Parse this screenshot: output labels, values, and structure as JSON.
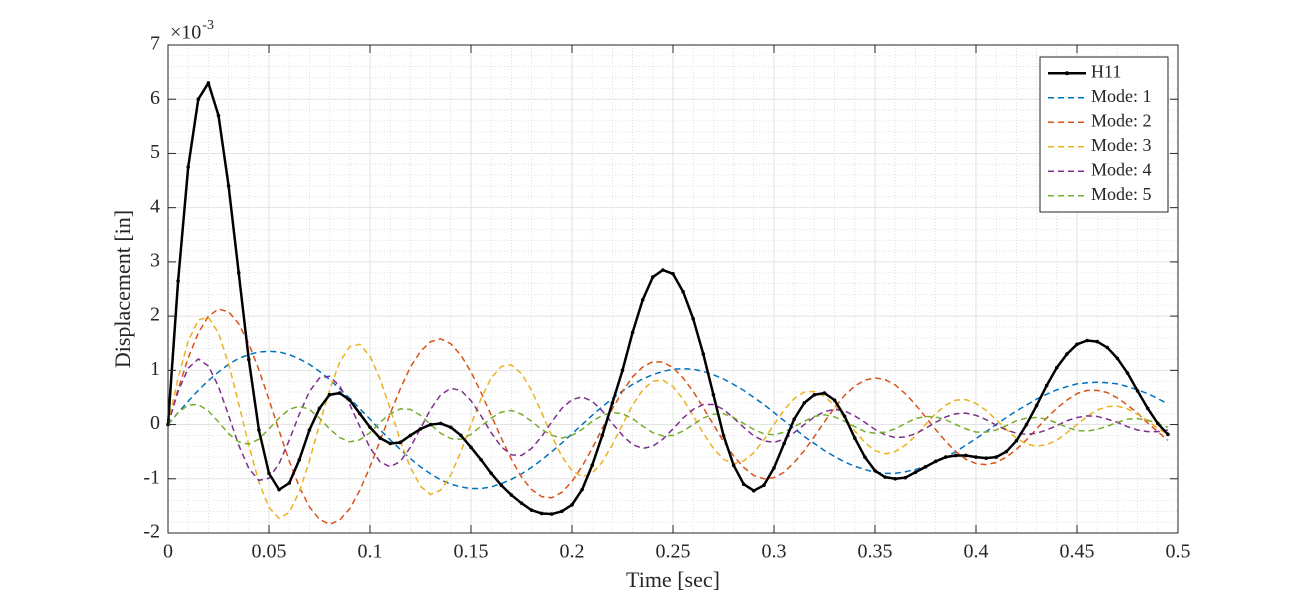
{
  "chart_data": {
    "type": "line",
    "xlabel": "Time [sec]",
    "ylabel": "Displacement [in]",
    "y_multiplier": {
      "base": "×10",
      "exponent": "-3"
    },
    "xlim": [
      0,
      0.5
    ],
    "xticks": [
      0,
      0.05,
      0.1,
      0.15,
      0.2,
      0.25,
      0.3,
      0.35,
      0.4,
      0.45,
      0.5
    ],
    "ylim": [
      -2,
      7
    ],
    "yticks": [
      -2,
      -1,
      0,
      1,
      2,
      3,
      4,
      5,
      6,
      7
    ],
    "grid": true,
    "minor_grid": true,
    "legend": "upper right",
    "x": [
      0,
      0.005,
      0.01,
      0.015,
      0.02,
      0.025,
      0.03,
      0.035,
      0.04,
      0.045,
      0.05,
      0.055,
      0.06,
      0.065,
      0.07,
      0.075,
      0.08,
      0.085,
      0.09,
      0.095,
      0.1,
      0.105,
      0.11,
      0.115,
      0.12,
      0.125,
      0.13,
      0.135,
      0.14,
      0.145,
      0.15,
      0.155,
      0.16,
      0.165,
      0.17,
      0.175,
      0.18,
      0.185,
      0.19,
      0.195,
      0.2,
      0.205,
      0.21,
      0.215,
      0.22,
      0.225,
      0.23,
      0.235,
      0.24,
      0.245,
      0.25,
      0.255,
      0.26,
      0.265,
      0.27,
      0.275,
      0.28,
      0.285,
      0.29,
      0.295,
      0.3,
      0.305,
      0.31,
      0.315,
      0.32,
      0.325,
      0.33,
      0.335,
      0.34,
      0.345,
      0.35,
      0.355,
      0.36,
      0.365,
      0.37,
      0.375,
      0.38,
      0.385,
      0.39,
      0.395,
      0.4,
      0.405,
      0.41,
      0.415,
      0.42,
      0.425,
      0.43,
      0.435,
      0.44,
      0.445,
      0.45,
      0.455,
      0.46,
      0.465,
      0.47,
      0.475,
      0.48,
      0.485,
      0.49,
      0.495
    ],
    "series": [
      {
        "name": "H11",
        "color": "#000000",
        "line_style": "solid",
        "marker": true,
        "values": [
          0,
          2.65,
          4.75,
          6.0,
          6.3,
          5.7,
          4.4,
          2.8,
          1.2,
          -0.1,
          -0.9,
          -1.2,
          -1.08,
          -0.65,
          -0.1,
          0.3,
          0.55,
          0.58,
          0.45,
          0.2,
          -0.05,
          -0.25,
          -0.35,
          -0.33,
          -0.2,
          -0.08,
          0.0,
          0.02,
          -0.05,
          -0.2,
          -0.42,
          -0.65,
          -0.9,
          -1.12,
          -1.3,
          -1.45,
          -1.58,
          -1.64,
          -1.65,
          -1.6,
          -1.48,
          -1.2,
          -0.75,
          -0.2,
          0.4,
          1.0,
          1.7,
          2.3,
          2.72,
          2.85,
          2.78,
          2.45,
          1.95,
          1.3,
          0.55,
          -0.2,
          -0.75,
          -1.1,
          -1.22,
          -1.12,
          -0.8,
          -0.35,
          0.1,
          0.4,
          0.55,
          0.58,
          0.45,
          0.15,
          -0.25,
          -0.6,
          -0.85,
          -0.97,
          -1.0,
          -0.98,
          -0.88,
          -0.78,
          -0.68,
          -0.6,
          -0.57,
          -0.57,
          -0.6,
          -0.62,
          -0.6,
          -0.5,
          -0.3,
          0.0,
          0.35,
          0.72,
          1.05,
          1.3,
          1.48,
          1.55,
          1.53,
          1.42,
          1.22,
          0.95,
          0.62,
          0.3,
          0.02,
          -0.18
        ]
      },
      {
        "name": "Mode: 1",
        "color": "#0072BD",
        "line_style": "dashed",
        "marker": false,
        "values": [
          0,
          0.22,
          0.43,
          0.63,
          0.81,
          0.97,
          1.11,
          1.22,
          1.29,
          1.34,
          1.35,
          1.34,
          1.29,
          1.21,
          1.11,
          0.98,
          0.83,
          0.66,
          0.48,
          0.29,
          0.1,
          -0.1,
          -0.28,
          -0.46,
          -0.63,
          -0.78,
          -0.91,
          -1.02,
          -1.1,
          -1.15,
          -1.18,
          -1.18,
          -1.15,
          -1.09,
          -1.01,
          -0.91,
          -0.79,
          -0.65,
          -0.5,
          -0.34,
          -0.17,
          0,
          0.17,
          0.33,
          0.48,
          0.62,
          0.74,
          0.84,
          0.92,
          0.98,
          1.02,
          1.03,
          1.02,
          0.98,
          0.92,
          0.84,
          0.74,
          0.63,
          0.5,
          0.37,
          0.22,
          0.07,
          -0.07,
          -0.22,
          -0.35,
          -0.48,
          -0.59,
          -0.69,
          -0.77,
          -0.83,
          -0.88,
          -0.9,
          -0.9,
          -0.87,
          -0.83,
          -0.77,
          -0.69,
          -0.6,
          -0.5,
          -0.38,
          -0.26,
          -0.13,
          0,
          0.13,
          0.25,
          0.36,
          0.47,
          0.56,
          0.64,
          0.7,
          0.75,
          0.77,
          0.78,
          0.77,
          0.75,
          0.7,
          0.64,
          0.57,
          0.48,
          0.38
        ]
      },
      {
        "name": "Mode: 2",
        "color": "#D95319",
        "line_style": "dashed",
        "marker": false,
        "values": [
          0,
          0.65,
          1.23,
          1.69,
          2.0,
          2.13,
          2.08,
          1.86,
          1.49,
          1.01,
          0.46,
          -0.11,
          -0.67,
          -1.15,
          -1.52,
          -1.75,
          -1.84,
          -1.76,
          -1.55,
          -1.21,
          -0.78,
          -0.3,
          0.2,
          0.66,
          1.06,
          1.35,
          1.53,
          1.58,
          1.49,
          1.28,
          0.97,
          0.59,
          0.17,
          -0.25,
          -0.64,
          -0.97,
          -1.2,
          -1.33,
          -1.35,
          -1.25,
          -1.05,
          -0.77,
          -0.44,
          -0.07,
          0.29,
          0.61,
          0.88,
          1.06,
          1.16,
          1.15,
          1.05,
          0.86,
          0.61,
          0.31,
          0,
          -0.31,
          -0.58,
          -0.79,
          -0.94,
          -1.0,
          -0.98,
          -0.88,
          -0.7,
          -0.48,
          -0.22,
          0.05,
          0.31,
          0.54,
          0.71,
          0.82,
          0.86,
          0.83,
          0.73,
          0.57,
          0.37,
          0.14,
          -0.09,
          -0.31,
          -0.5,
          -0.64,
          -0.72,
          -0.74,
          -0.7,
          -0.6,
          -0.46,
          -0.28,
          -0.08,
          0.12,
          0.3,
          0.45,
          0.57,
          0.63,
          0.63,
          0.59,
          0.49,
          0.36,
          0.21,
          0.03,
          -0.13,
          -0.29
        ]
      },
      {
        "name": "Mode: 3",
        "color": "#EDB120",
        "line_style": "dashed",
        "marker": false,
        "values": [
          0,
          0.86,
          1.54,
          1.93,
          1.98,
          1.69,
          1.12,
          0.39,
          -0.38,
          -1.06,
          -1.53,
          -1.73,
          -1.62,
          -1.24,
          -0.67,
          0,
          0.64,
          1.15,
          1.44,
          1.48,
          1.26,
          0.84,
          0.29,
          -0.29,
          -0.79,
          -1.14,
          -1.29,
          -1.21,
          -0.93,
          -0.5,
          0,
          0.48,
          0.86,
          1.07,
          1.1,
          0.94,
          0.63,
          0.22,
          -0.21,
          -0.59,
          -0.85,
          -0.96,
          -0.9,
          -0.69,
          -0.37,
          0,
          0.36,
          0.64,
          0.8,
          0.82,
          0.7,
          0.47,
          0.16,
          -0.16,
          -0.44,
          -0.64,
          -0.72,
          -0.67,
          -0.52,
          -0.28,
          0,
          0.27,
          0.48,
          0.6,
          0.61,
          0.52,
          0.35,
          0.12,
          -0.12,
          -0.33,
          -0.48,
          -0.54,
          -0.5,
          -0.38,
          -0.21,
          0,
          0.2,
          0.36,
          0.45,
          0.46,
          0.39,
          0.26,
          0.09,
          -0.09,
          -0.25,
          -0.36,
          -0.4,
          -0.37,
          -0.29,
          -0.15,
          0,
          0.15,
          0.27,
          0.33,
          0.34,
          0.29,
          0.19,
          0.07,
          -0.07,
          -0.18
        ]
      },
      {
        "name": "Mode: 4",
        "color": "#7E2F8E",
        "line_style": "dashed",
        "marker": false,
        "values": [
          0,
          0.61,
          1.04,
          1.21,
          1.08,
          0.7,
          0.17,
          -0.38,
          -0.81,
          -1.03,
          -0.99,
          -0.72,
          -0.29,
          0.19,
          0.61,
          0.86,
          0.89,
          0.71,
          0.37,
          -0.04,
          -0.43,
          -0.69,
          -0.78,
          -0.68,
          -0.42,
          -0.07,
          0.28,
          0.55,
          0.67,
          0.63,
          0.44,
          0.16,
          -0.15,
          -0.41,
          -0.56,
          -0.57,
          -0.44,
          -0.22,
          0.05,
          0.3,
          0.46,
          0.51,
          0.43,
          0.25,
          0.02,
          -0.2,
          -0.37,
          -0.44,
          -0.4,
          -0.27,
          -0.08,
          0.12,
          0.28,
          0.37,
          0.37,
          0.28,
          0.12,
          -0.05,
          -0.21,
          -0.3,
          -0.33,
          -0.27,
          -0.15,
          0,
          0.14,
          0.24,
          0.28,
          0.25,
          0.16,
          0.04,
          -0.09,
          -0.19,
          -0.24,
          -0.23,
          -0.17,
          -0.07,
          0.04,
          0.14,
          0.2,
          0.21,
          0.17,
          0.09,
          -0.01,
          -0.1,
          -0.16,
          -0.18,
          -0.16,
          -0.1,
          -0.02,
          0.07,
          0.13,
          0.16,
          0.15,
          0.1,
          0.04,
          -0.04,
          -0.1,
          -0.13,
          -0.13,
          -0.1
        ]
      },
      {
        "name": "Mode: 5",
        "color": "#77AC30",
        "line_style": "dashed",
        "marker": false,
        "values": [
          0,
          0.22,
          0.36,
          0.37,
          0.25,
          0.05,
          -0.17,
          -0.32,
          -0.36,
          -0.27,
          -0.08,
          0.12,
          0.28,
          0.34,
          0.28,
          0.12,
          -0.08,
          -0.24,
          -0.32,
          -0.28,
          -0.15,
          0.04,
          0.2,
          0.29,
          0.28,
          0.17,
          0,
          -0.16,
          -0.26,
          -0.27,
          -0.18,
          -0.03,
          0.12,
          0.23,
          0.26,
          0.19,
          0.06,
          -0.09,
          -0.2,
          -0.25,
          -0.2,
          -0.09,
          0.06,
          0.17,
          0.22,
          0.2,
          0.11,
          -0.03,
          -0.15,
          -0.21,
          -0.2,
          -0.12,
          0,
          0.12,
          0.19,
          0.2,
          0.13,
          0.02,
          -0.09,
          -0.17,
          -0.19,
          -0.14,
          -0.04,
          0.06,
          0.15,
          0.18,
          0.14,
          0.06,
          -0.04,
          -0.13,
          -0.16,
          -0.14,
          -0.08,
          0.02,
          0.11,
          0.15,
          0.14,
          0.09,
          0,
          -0.08,
          -0.14,
          -0.14,
          -0.1,
          -0.02,
          0.07,
          0.12,
          0.13,
          0.1,
          0.03,
          -0.05,
          -0.11,
          -0.12,
          -0.09,
          -0.03,
          0.04,
          0.1,
          0.11,
          0.08,
          0.02,
          -0.05
        ]
      }
    ]
  }
}
